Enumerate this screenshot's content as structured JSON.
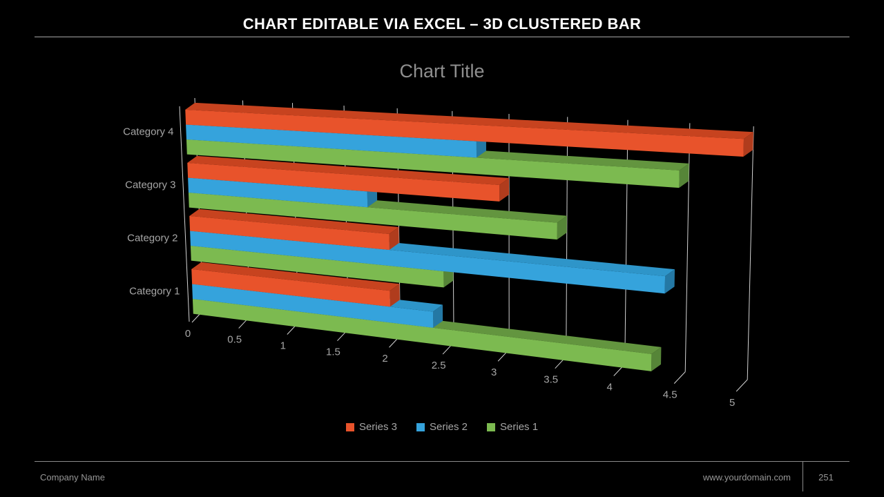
{
  "header": {
    "title": "CHART EDITABLE VIA EXCEL – 3D CLUSTERED BAR"
  },
  "chart": {
    "title": "Chart Title"
  },
  "chart_data": {
    "type": "bar",
    "subtype": "3d-clustered-horizontal",
    "title": "Chart Title",
    "categories": [
      "Category 1",
      "Category 2",
      "Category 3",
      "Category 4"
    ],
    "series": [
      {
        "name": "Series 1",
        "color": "#7cba50",
        "color_top": "#63953f",
        "color_end": "#568538",
        "values": [
          4.3,
          2.5,
          3.5,
          4.5
        ]
      },
      {
        "name": "Series 2",
        "color": "#35a3dc",
        "color_top": "#2e95c9",
        "color_end": "#2478a4",
        "values": [
          2.4,
          4.4,
          1.8,
          2.8
        ]
      },
      {
        "name": "Series 3",
        "color": "#e8532b",
        "color_top": "#c7431f",
        "color_end": "#b03c1d",
        "values": [
          2.0,
          2.0,
          3.0,
          5.0
        ]
      }
    ],
    "value_axis": {
      "min": 0,
      "max": 5,
      "step": 0.5,
      "tick_labels": [
        "0",
        "0.5",
        "1",
        "1.5",
        "2",
        "2.5",
        "3",
        "3.5",
        "4",
        "4.5",
        "5"
      ]
    },
    "grid": true,
    "legend_position": "bottom",
    "gridline_color": "#d4d4d4",
    "axis_text_color": "#a6a6a6"
  },
  "legend": {
    "items": [
      {
        "label": "Series 3",
        "color": "#e8532b"
      },
      {
        "label": "Series 2",
        "color": "#35a3dc"
      },
      {
        "label": "Series 1",
        "color": "#7cba50"
      }
    ]
  },
  "footer": {
    "company": "Company Name",
    "website": "www.yourdomain.com",
    "page": "251"
  }
}
